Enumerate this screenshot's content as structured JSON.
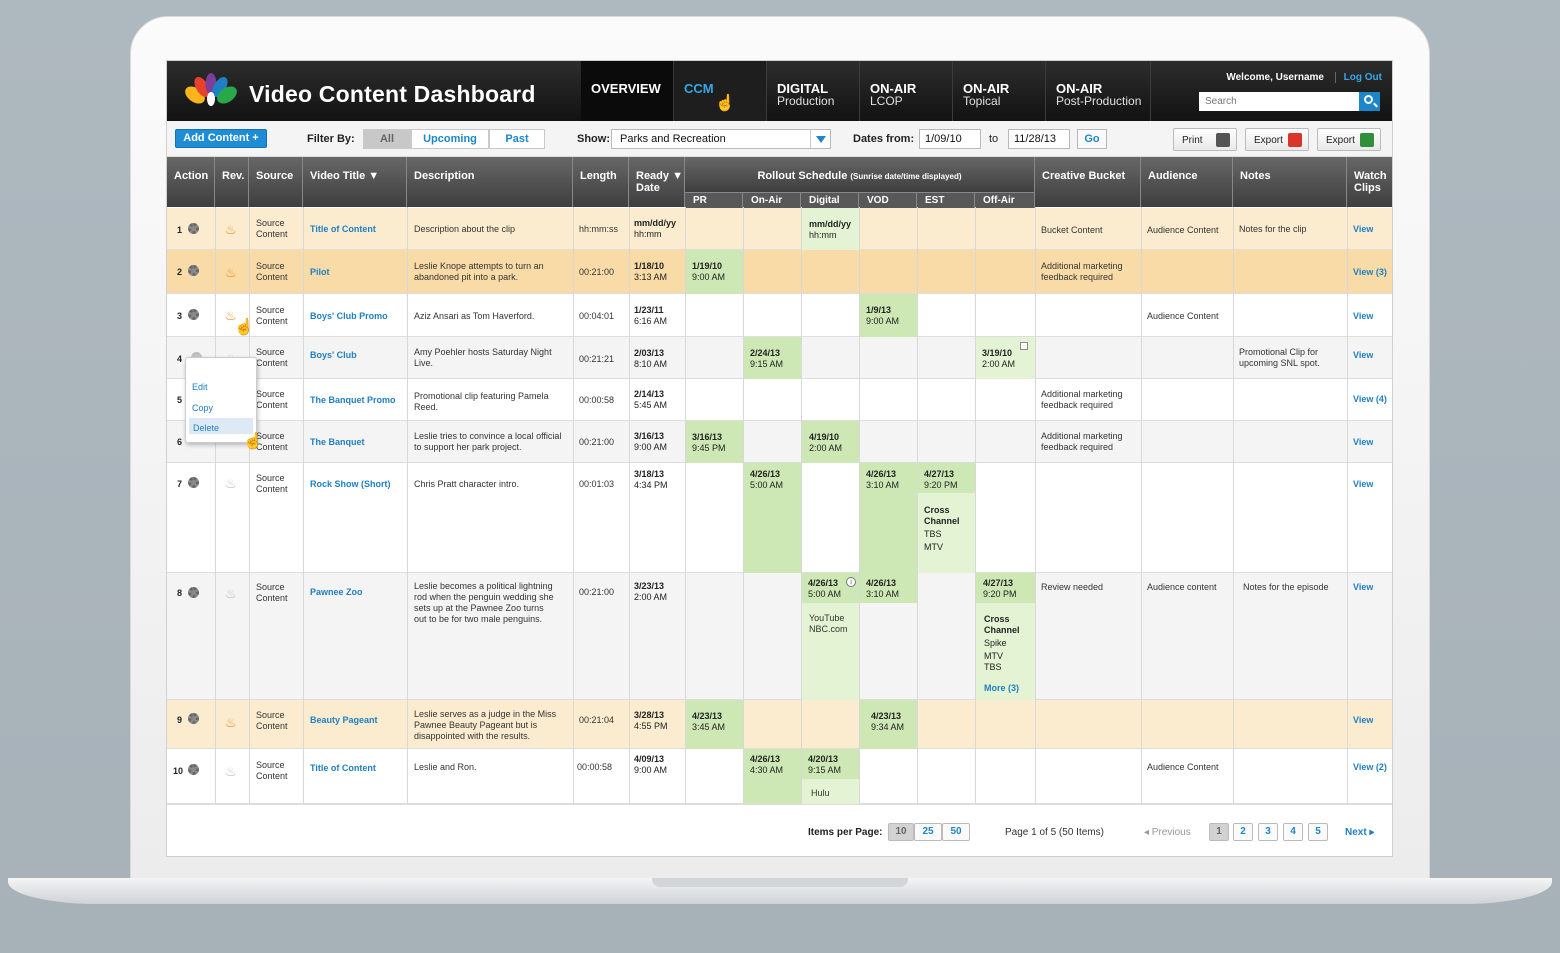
{
  "app": {
    "title": "Video Content Dashboard",
    "welcome": "Welcome, Username",
    "logout": "Log Out",
    "search_placeholder": "Search"
  },
  "nav": [
    {
      "label": "OVERVIEW",
      "sub": ""
    },
    {
      "label": "CCM",
      "sub": ""
    },
    {
      "label": "DIGITAL",
      "sub": "Production"
    },
    {
      "label": "ON-AIR",
      "sub": "LCOP"
    },
    {
      "label": "ON-AIR",
      "sub": "Topical"
    },
    {
      "label": "ON-AIR",
      "sub": "Post-Production"
    }
  ],
  "toolbar": {
    "add": "Add Content +",
    "filter_by": "Filter By:",
    "filters": [
      "All",
      "Upcoming",
      "Past"
    ],
    "show": "Show:",
    "show_value": "Parks and Recreation",
    "dates_from": "Dates from:",
    "from": "1/09/10",
    "to_label": "to",
    "to": "11/28/13",
    "go": "Go",
    "print": "Print",
    "export1": "Export",
    "export2": "Export"
  },
  "headers": {
    "action": "Action",
    "rev": "Rev.",
    "source": "Source",
    "title": "Video Title ▼",
    "desc": "Description",
    "length": "Length",
    "ready1": "Ready ▼",
    "ready2": "Date",
    "rollout": "Rollout Schedule",
    "rollout_note": "(Sunrise date/time displayed)",
    "creative": "Creative Bucket",
    "audience": "Audience",
    "notes": "Notes",
    "watch1": "Watch",
    "watch2": "Clips",
    "pr": "PR",
    "onair": "On-Air",
    "digital": "Digital",
    "vod": "VOD",
    "est": "EST",
    "offair": "Off-Air"
  },
  "menu": {
    "edit": "Edit",
    "copy": "Copy",
    "delete": "Delete"
  },
  "source_text": {
    "l1": "Source",
    "l2": "Content"
  },
  "rows": [
    {
      "n": "1",
      "title": "Title of Content",
      "desc": "Description about the clip",
      "len": "hh:mm:ss",
      "rd1": "mm/dd/yy",
      "rd2": "hh:mm",
      "digital1": "mm/dd/yy",
      "digital2": "hh:mm",
      "creative": "Bucket Content",
      "audience": "Audience Content",
      "notes": "Notes for the clip",
      "watch": "View"
    },
    {
      "n": "2",
      "title": "Pilot",
      "desc1": "Leslie Knope attempts to turn an",
      "desc2": "abandoned pit into a park.",
      "len": "00:21:00",
      "rd1": "1/18/10",
      "rd2": "3:13 AM",
      "pr1": "1/19/10",
      "pr2": "9:00 AM",
      "creative1": "Additional marketing",
      "creative2": "feedback required",
      "watch": "View (3)"
    },
    {
      "n": "3",
      "title": "Boys' Club Promo",
      "desc": "Aziz Ansari as Tom Haverford.",
      "len": "00:04:01",
      "rd1": "1/23/11",
      "rd2": "6:16 AM",
      "vod1": "1/9/13",
      "vod2": "9:00 AM",
      "audience": "Audience Content",
      "watch": "View"
    },
    {
      "n": "4",
      "title": "Boys' Club",
      "desc1": "Amy Poehler hosts Saturday Night",
      "desc2": "Live.",
      "len": "00:21:21",
      "rd1": "2/03/13",
      "rd2": "8:10 AM",
      "onair1": "2/24/13",
      "onair2": "9:15 AM",
      "off1": "3/19/10",
      "off2": "2:00 AM",
      "notes1": "Promotional Clip for",
      "notes2": "upcoming SNL spot.",
      "watch": "View"
    },
    {
      "n": "5",
      "title": "The Banquet Promo",
      "desc1": "Promotional clip featuring Pamela",
      "desc2": "Reed.",
      "len": "00:00:58",
      "rd1": "2/14/13",
      "rd2": "5:45 AM",
      "creative1": "Additional marketing",
      "creative2": "feedback required",
      "watch": "View (4)"
    },
    {
      "n": "6",
      "title": "The Banquet",
      "desc1": "Leslie tries to convince a local official",
      "desc2": "to support her park project.",
      "len": "00:21:00",
      "rd1": "3/16/13",
      "rd2": "9:00 AM",
      "pr1": "3/16/13",
      "pr2": "9:45 PM",
      "dig1": "4/19/10",
      "dig2": "2:00 AM",
      "creative1": "Additional marketing",
      "creative2": "feedback required",
      "watch": "View"
    },
    {
      "n": "7",
      "title": "Rock Show (Short)",
      "desc": "Chris Pratt character intro.",
      "len": "00:01:03",
      "rd1": "3/18/13",
      "rd2": "4:34 PM",
      "onair1": "4/26/13",
      "onair2": "5:00 AM",
      "vod1": "4/26/13",
      "vod2": "3:10 AM",
      "est1": "4/27/13",
      "est2": "9:20 PM",
      "est3": "Cross",
      "est4": "Channel",
      "est5": "TBS",
      "est6": "MTV",
      "watch": "View"
    },
    {
      "n": "8",
      "title": "Pawnee Zoo",
      "desc1": "Leslie becomes a political lightning",
      "desc2": "rod when the penguin wedding she",
      "desc3": "sets up at the Pawnee Zoo turns",
      "desc4": "out to be for two male penguins.",
      "len": "00:21:00",
      "rd1": "3/23/13",
      "rd2": "2:00 AM",
      "dig1": "4/26/13",
      "dig2": "5:00 AM",
      "dig3": "YouTube",
      "dig4": "NBC.com",
      "vod1": "4/26/13",
      "vod2": "3:10 AM",
      "off1": "4/27/13",
      "off2": "9:20 PM",
      "off3": "Cross",
      "off4": "Channel",
      "off5": "Spike",
      "off6": "MTV",
      "off7": "TBS",
      "off8": "More (3)",
      "creative": "Review needed",
      "audience": "Audience content",
      "notes": "Notes for the episode",
      "watch": "View"
    },
    {
      "n": "9",
      "title": "Beauty Pageant",
      "desc1": "Leslie serves as a judge in the Miss",
      "desc2": "Pawnee Beauty Pageant but is",
      "desc3": "disappointed with the results.",
      "len": "00:21:04",
      "rd1": "3/28/13",
      "rd2": "4:55 PM",
      "pr1": "4/23/13",
      "pr2": "3:45 AM",
      "vod1": "4/23/13",
      "vod2": "9:34 AM",
      "watch": "View"
    },
    {
      "n": "10",
      "title": "Title of Content",
      "desc": "Leslie and Ron.",
      "len": "00:00:58",
      "rd1": "4/09/13",
      "rd2": "9:00 AM",
      "onair1": "4/26/13",
      "onair2": "4:30 AM",
      "dig1": "4/20/13",
      "dig2": "9:15 AM",
      "dig3": "Hulu",
      "audience": "Audience Content",
      "watch": "View (2)"
    }
  ],
  "footer": {
    "ipp": "Items per Page:",
    "sizes": [
      "10",
      "25",
      "50"
    ],
    "page_info": "Page 1 of 5 (50 Items)",
    "prev": "◂ Previous",
    "pages": [
      "1",
      "2",
      "3",
      "4",
      "5"
    ],
    "next": "Next ▸"
  }
}
